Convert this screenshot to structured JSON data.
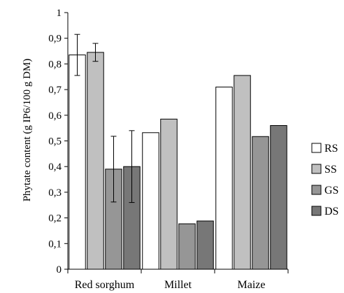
{
  "chart_data": {
    "type": "bar",
    "title": "",
    "xlabel": "",
    "ylabel": "Phytate content (g IP6/100 g DM)",
    "ylim": [
      0,
      1
    ],
    "yticks": [
      0,
      0.1,
      0.2,
      0.3,
      0.4,
      0.5,
      0.6,
      0.7,
      0.8,
      0.9,
      1
    ],
    "ytick_labels": [
      "0",
      "0,1",
      "0,2",
      "0,3",
      "0,4",
      "0,5",
      "0,6",
      "0,7",
      "0,8",
      "0,9",
      "1"
    ],
    "categories": [
      "Red sorghum",
      "Millet",
      "Maize"
    ],
    "legend_position": "right",
    "grid": false,
    "series": [
      {
        "name": "RS",
        "color": "#ffffff",
        "values": [
          0.835,
          0.532,
          0.71
        ],
        "error": [
          0.08,
          null,
          null
        ]
      },
      {
        "name": "SS",
        "color": "#c0c0c0",
        "values": [
          0.845,
          0.585,
          0.755
        ],
        "error": [
          0.035,
          null,
          null
        ]
      },
      {
        "name": "GS",
        "color": "#969696",
        "values": [
          0.39,
          0.177,
          0.517
        ],
        "error": [
          0.128,
          null,
          null
        ]
      },
      {
        "name": "DS",
        "color": "#777777",
        "values": [
          0.4,
          0.188,
          0.56
        ],
        "error": [
          0.14,
          null,
          null
        ]
      }
    ]
  }
}
